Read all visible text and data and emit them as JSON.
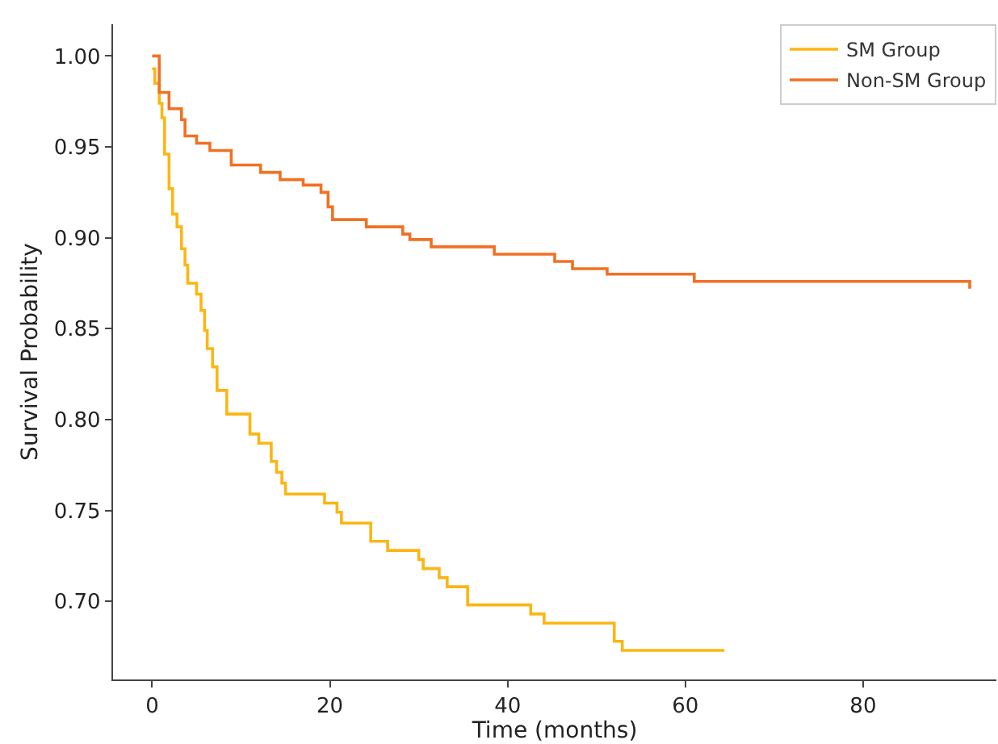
{
  "chart_data": {
    "type": "step",
    "xlabel": "Time (months)",
    "ylabel": "Survival Probability",
    "xlim": [
      -4.4,
      95
    ],
    "ylim": [
      0.657,
      1.0175
    ],
    "xticks": [
      0,
      20,
      40,
      60,
      80
    ],
    "yticks": [
      {
        "value": 0.7,
        "label": "0.70"
      },
      {
        "value": 0.75,
        "label": "0.75"
      },
      {
        "value": 0.8,
        "label": "0.80"
      },
      {
        "value": 0.85,
        "label": "0.85"
      },
      {
        "value": 0.9,
        "label": "0.90"
      },
      {
        "value": 0.95,
        "label": "0.95"
      },
      {
        "value": 1.0,
        "label": "1.00"
      }
    ],
    "legend": "top right",
    "marker": "none",
    "line_style": "solid",
    "series": [
      {
        "name": "SM Group",
        "color": "#fbb614",
        "x": [
          0,
          0.3,
          0.8,
          1.1,
          1.4,
          1.9,
          2.3,
          2.8,
          3.3,
          3.7,
          4,
          5,
          5.5,
          5.9,
          6.2,
          6.8,
          7.3,
          8.4,
          11,
          12,
          13.4,
          14,
          14.6,
          15,
          19.4,
          20.8,
          21.3,
          24.6,
          26.5,
          30,
          30.5,
          32.3,
          33.2,
          35.5,
          42.6,
          44.1,
          52,
          52.9,
          64.4
        ],
        "values": [
          0.993,
          0.985,
          0.974,
          0.966,
          0.946,
          0.927,
          0.913,
          0.906,
          0.894,
          0.885,
          0.875,
          0.869,
          0.86,
          0.849,
          0.839,
          0.829,
          0.816,
          0.803,
          0.792,
          0.787,
          0.777,
          0.771,
          0.765,
          0.759,
          0.754,
          0.749,
          0.743,
          0.733,
          0.728,
          0.723,
          0.718,
          0.713,
          0.708,
          0.698,
          0.693,
          0.688,
          0.678,
          0.673,
          0.673
        ]
      },
      {
        "name": "Non-SM Group",
        "color": "#f07124",
        "x": [
          0,
          0.8,
          1.9,
          3.3,
          3.7,
          5,
          6.5,
          8.9,
          12.2,
          14.4,
          17,
          19,
          19.8,
          20.3,
          24.1,
          28.2,
          29,
          31.4,
          38.5,
          45.3,
          47.3,
          51.2,
          61,
          92
        ],
        "values": [
          1.0,
          0.98,
          0.971,
          0.965,
          0.956,
          0.952,
          0.948,
          0.94,
          0.936,
          0.932,
          0.929,
          0.925,
          0.917,
          0.91,
          0.906,
          0.902,
          0.899,
          0.895,
          0.891,
          0.887,
          0.883,
          0.88,
          0.876,
          0.872
        ]
      }
    ]
  }
}
